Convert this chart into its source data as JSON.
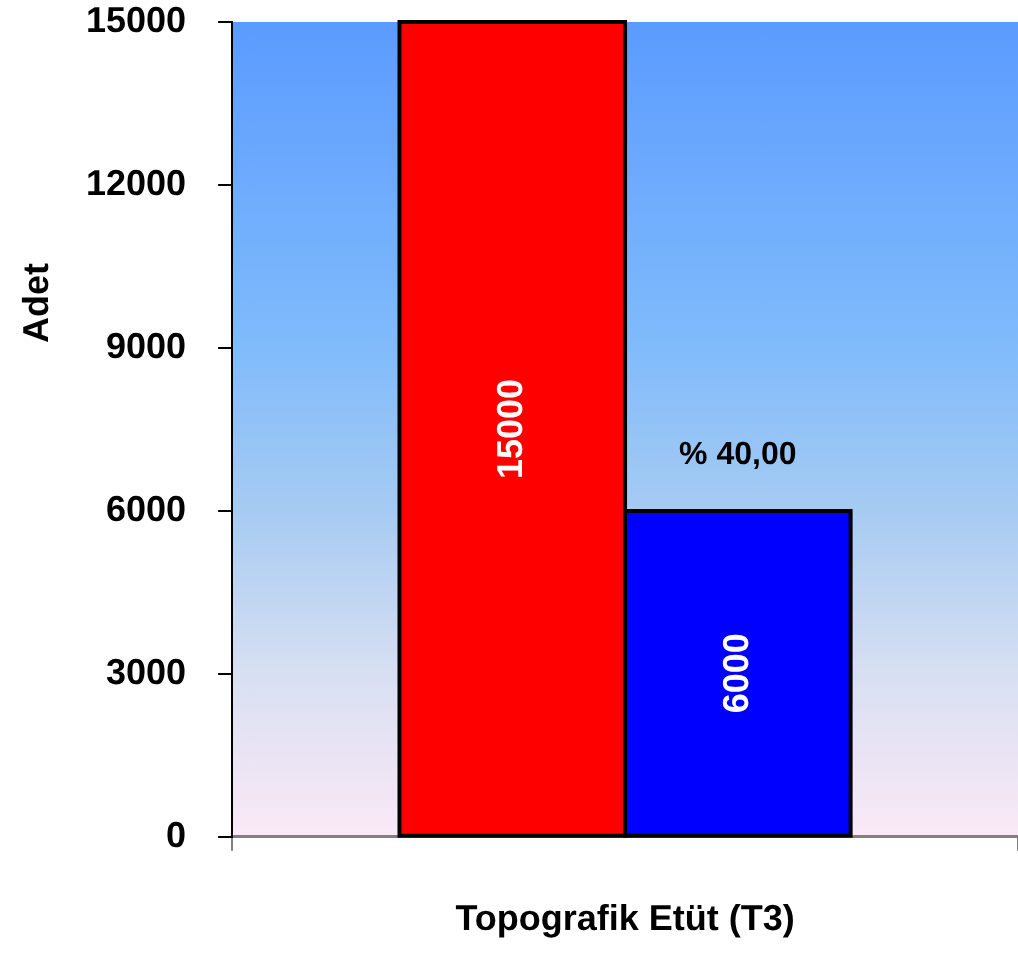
{
  "chart_data": {
    "type": "bar",
    "ylabel": "Adet",
    "categories": [
      "Topografik Etüt (T3)"
    ],
    "series": [
      {
        "color": "#ff0000",
        "values": [
          15000
        ]
      },
      {
        "color": "#0000ff",
        "values": [
          6000
        ]
      }
    ],
    "ylim": [
      0,
      15000
    ],
    "yticks": [
      0,
      3000,
      6000,
      9000,
      12000,
      15000
    ],
    "grid": false,
    "legend": false,
    "data_labels": true,
    "annotations": [
      {
        "text": "% 40,00",
        "x": "Topografik Etüt (T3)",
        "y": 6000
      }
    ]
  }
}
